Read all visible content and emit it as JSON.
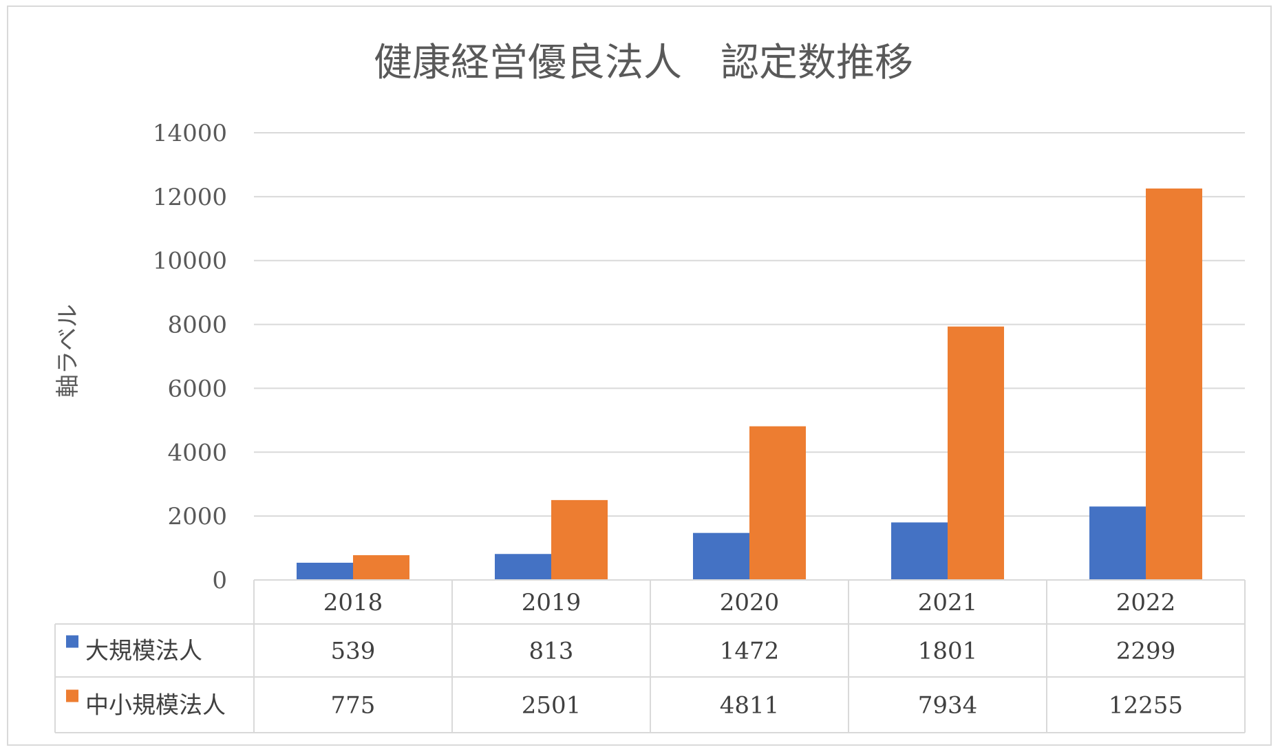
{
  "chart_data": {
    "type": "bar",
    "title": "健康経営優良法人　認定数推移",
    "xlabel": "",
    "ylabel": "軸ラベル",
    "categories": [
      "2018",
      "2019",
      "2020",
      "2021",
      "2022"
    ],
    "series": [
      {
        "name": "大規模法人",
        "color": "#4472c4",
        "values": [
          539,
          813,
          1472,
          1801,
          2299
        ]
      },
      {
        "name": "中小規模法人",
        "color": "#ed7d31",
        "values": [
          775,
          2501,
          4811,
          7934,
          12255
        ]
      }
    ],
    "ylim": [
      0,
      14000
    ],
    "yticks": [
      "0",
      "2000",
      "4000",
      "6000",
      "8000",
      "10000",
      "12000",
      "14000"
    ],
    "grid": true,
    "data_table": true
  },
  "colors": {
    "gridline": "#d9d9d9",
    "text": "#595959",
    "table_border": "#d9d9d9"
  }
}
